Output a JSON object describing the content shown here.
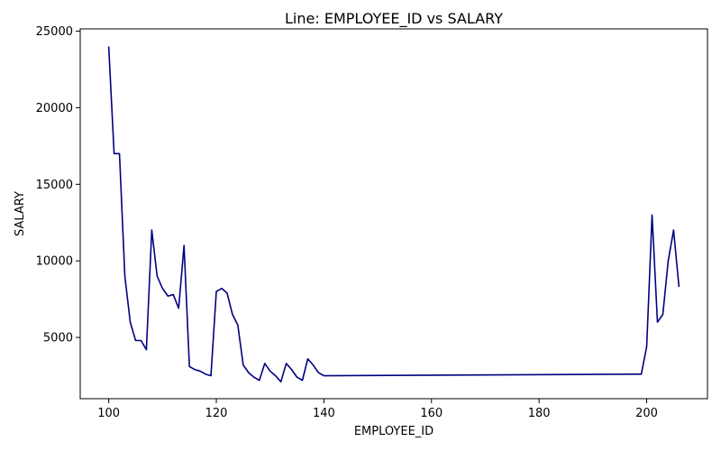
{
  "chart_data": {
    "type": "line",
    "title": "Line: EMPLOYEE_ID vs SALARY",
    "xlabel": "EMPLOYEE_ID",
    "ylabel": "SALARY",
    "xlim": [
      94.7,
      211.3
    ],
    "ylim": [
      1000,
      25150
    ],
    "xticks": [
      100,
      120,
      140,
      160,
      180,
      200
    ],
    "yticks": [
      5000,
      10000,
      15000,
      20000,
      25000
    ],
    "grid": false,
    "legend": "none",
    "line_color": "#000080",
    "series": [
      {
        "x": [
          100,
          101,
          102,
          103,
          104,
          105,
          106,
          107,
          108,
          109,
          110,
          111,
          112,
          113,
          114,
          115,
          116,
          117,
          118,
          119,
          120,
          121,
          122,
          123,
          124,
          125,
          126,
          127,
          128,
          129,
          130,
          131,
          132,
          133,
          134,
          135,
          136,
          137,
          138,
          139,
          140,
          198,
          199,
          200,
          201,
          202,
          203,
          204,
          205,
          206
        ],
        "y": [
          24000,
          17000,
          17000,
          9000,
          6000,
          4800,
          4800,
          4200,
          12008,
          9000,
          8200,
          7700,
          7800,
          6900,
          11000,
          3100,
          2900,
          2800,
          2600,
          2500,
          8000,
          8200,
          7900,
          6500,
          5800,
          3200,
          2700,
          2400,
          2200,
          3300,
          2800,
          2500,
          2100,
          3300,
          2900,
          2400,
          2200,
          3600,
          3200,
          2700,
          2500,
          2600,
          2600,
          4400,
          13000,
          6000,
          6500,
          10000,
          12008,
          8300
        ]
      }
    ]
  }
}
